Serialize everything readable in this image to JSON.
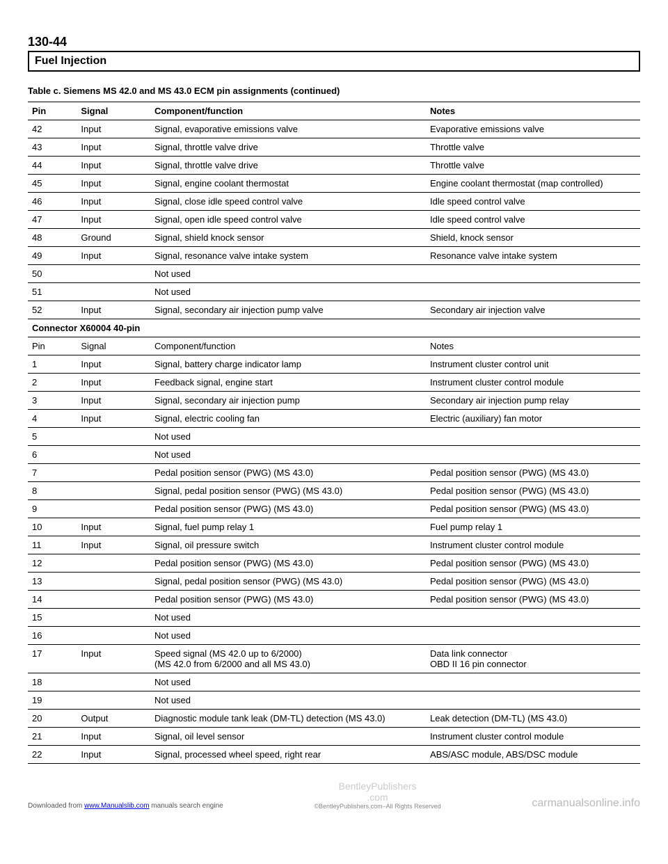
{
  "header": {
    "page_number": "130-44",
    "section_title": "Fuel Injection"
  },
  "table": {
    "caption": "Table c. Siemens MS 42.0 and MS 43.0 ECM pin assignments (continued)",
    "columns": [
      "Pin",
      "Signal",
      "Component/function",
      "Notes"
    ],
    "rows_a": [
      [
        "42",
        "Input",
        "Signal, evaporative emissions valve",
        "Evaporative emissions valve"
      ],
      [
        "43",
        "Input",
        "Signal, throttle valve drive",
        "Throttle valve"
      ],
      [
        "44",
        "Input",
        "Signal, throttle valve drive",
        "Throttle valve"
      ],
      [
        "45",
        "Input",
        "Signal, engine coolant thermostat",
        "Engine coolant thermostat (map controlled)"
      ],
      [
        "46",
        "Input",
        "Signal, close idle speed control valve",
        "Idle speed control valve"
      ],
      [
        "47",
        "Input",
        "Signal, open idle speed control valve",
        "Idle speed control valve"
      ],
      [
        "48",
        "Ground",
        "Signal, shield knock sensor",
        "Shield, knock sensor"
      ],
      [
        "49",
        "Input",
        "Signal, resonance valve intake system",
        "Resonance valve intake system"
      ],
      [
        "50",
        "",
        "Not used",
        ""
      ],
      [
        "51",
        "",
        "Not used",
        ""
      ],
      [
        "52",
        "Input",
        "Signal, secondary air injection pump valve",
        "Secondary air injection valve"
      ]
    ],
    "connector_label": "Connector X60004 40-pin",
    "subheader": [
      "Pin",
      "Signal",
      "Component/function",
      "Notes"
    ],
    "rows_b": [
      [
        "1",
        "Input",
        "Signal, battery charge indicator lamp",
        "Instrument cluster control unit"
      ],
      [
        "2",
        "Input",
        "Feedback signal, engine start",
        "Instrument cluster control module"
      ],
      [
        "3",
        "Input",
        "Signal, secondary air injection pump",
        "Secondary air injection pump relay"
      ],
      [
        "4",
        "Input",
        "Signal, electric cooling fan",
        "Electric (auxiliary) fan motor"
      ],
      [
        "5",
        "",
        "Not used",
        ""
      ],
      [
        "6",
        "",
        "Not used",
        ""
      ],
      [
        "7",
        "",
        "Pedal position sensor (PWG) (MS 43.0)",
        "Pedal position sensor (PWG) (MS 43.0)"
      ],
      [
        "8",
        "",
        "Signal, pedal position sensor (PWG) (MS 43.0)",
        "Pedal position sensor (PWG) (MS 43.0)"
      ],
      [
        "9",
        "",
        "Pedal position sensor (PWG) (MS 43.0)",
        "Pedal position sensor (PWG) (MS 43.0)"
      ],
      [
        "10",
        "Input",
        "Signal, fuel pump relay 1",
        "Fuel pump relay 1"
      ],
      [
        "11",
        "Input",
        "Signal, oil pressure switch",
        "Instrument cluster control module"
      ],
      [
        "12",
        "",
        "Pedal position sensor (PWG) (MS 43.0)",
        "Pedal position sensor (PWG) (MS 43.0)"
      ],
      [
        "13",
        "",
        "Signal, pedal position sensor (PWG) (MS 43.0)",
        "Pedal position sensor (PWG) (MS 43.0)"
      ],
      [
        "14",
        "",
        "Pedal position sensor (PWG) (MS 43.0)",
        "Pedal position sensor (PWG) (MS 43.0)"
      ],
      [
        "15",
        "",
        "Not used",
        ""
      ],
      [
        "16",
        "",
        "Not used",
        ""
      ],
      [
        "17",
        "Input",
        "Speed signal (MS 42.0 up to 6/2000)\n(MS 42.0 from 6/2000 and all MS 43.0)",
        "Data link connector\nOBD II 16 pin connector"
      ],
      [
        "18",
        "",
        "Not used",
        ""
      ],
      [
        "19",
        "",
        "Not used",
        ""
      ],
      [
        "20",
        "Output",
        "Diagnostic module tank leak (DM-TL) detection (MS 43.0)",
        "Leak detection (DM-TL) (MS 43.0)"
      ],
      [
        "21",
        "Input",
        "Signal, oil level sensor",
        "Instrument cluster control module"
      ],
      [
        "22",
        "Input",
        "Signal, processed wheel speed, right rear",
        "ABS/ASC module, ABS/DSC module"
      ]
    ]
  },
  "footer": {
    "left_prefix": "Downloaded from ",
    "left_link": "www.Manualslib.com",
    "left_suffix": " manuals search engine",
    "center_top": "BentleyPublishers",
    "center_mid": ".com",
    "center_sub": "©BentleyPublishers.com–All Rights Reserved",
    "right": "carmanualsonline.info"
  }
}
